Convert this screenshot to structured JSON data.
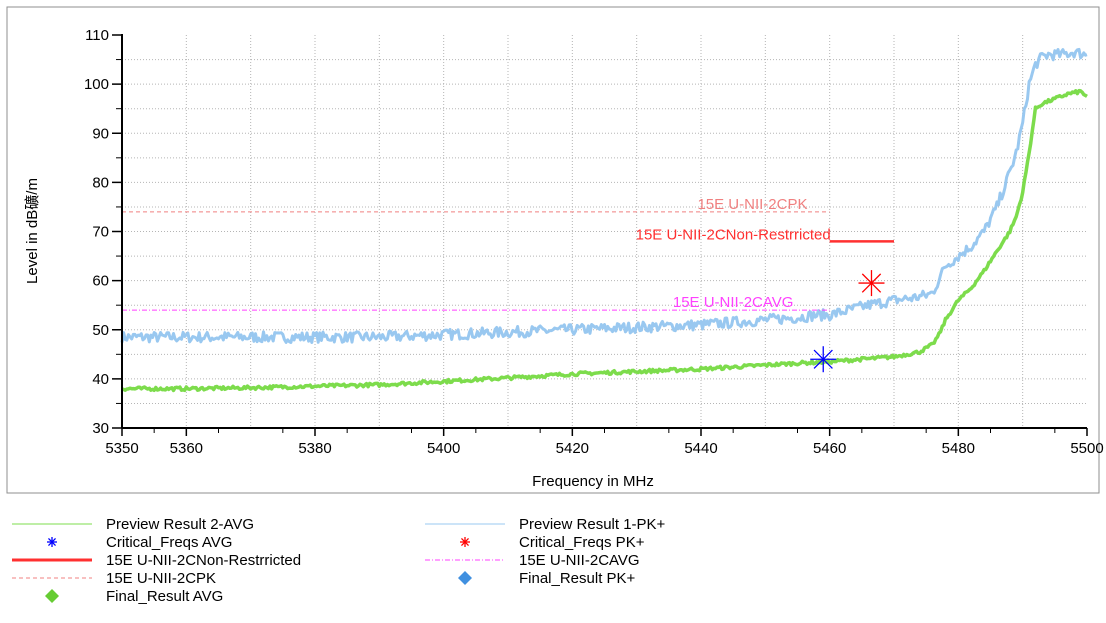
{
  "chart_data": {
    "type": "line",
    "title": "",
    "xlabel": "Frequency in MHz",
    "ylabel": "Level in dB礦/m",
    "xlim": [
      5350,
      5500
    ],
    "ylim": [
      30,
      110
    ],
    "x_ticks": [
      "5350",
      "5360",
      "5380",
      "5400",
      "5420",
      "5440",
      "5460",
      "5480",
      "5500"
    ],
    "x_tick_values": [
      5350,
      5360,
      5380,
      5400,
      5420,
      5440,
      5460,
      5480,
      5500
    ],
    "y_ticks": [
      "30",
      "40",
      "50",
      "60",
      "70",
      "80",
      "90",
      "100",
      "110"
    ],
    "y_tick_values": [
      30,
      40,
      50,
      60,
      70,
      80,
      90,
      100,
      110
    ],
    "grid": true,
    "series": [
      {
        "name": "Preview Result 1-PK+",
        "color": "#99c8f0",
        "x": [
          5350,
          5360,
          5370,
          5380,
          5390,
          5400,
          5410,
          5420,
          5430,
          5440,
          5445,
          5450,
          5455,
          5458,
          5460,
          5463,
          5466,
          5470,
          5473,
          5475,
          5476,
          5478,
          5480,
          5482,
          5484,
          5486,
          5488,
          5489,
          5490,
          5491,
          5492,
          5493,
          5494,
          5496,
          5498,
          5500
        ],
        "y": [
          48.5,
          48.5,
          48.5,
          48.5,
          48.5,
          49,
          49.5,
          50,
          50.5,
          51,
          51.5,
          52,
          52.5,
          53,
          53,
          54,
          55,
          56,
          56.5,
          57,
          57.5,
          63,
          65,
          67,
          70,
          75,
          82,
          86,
          92,
          100,
          104,
          105.5,
          106,
          106,
          106.5,
          106
        ]
      },
      {
        "name": "Preview Result 2-AVG",
        "color": "#7ddc4c",
        "x": [
          5350,
          5360,
          5370,
          5380,
          5390,
          5400,
          5410,
          5420,
          5430,
          5440,
          5450,
          5455,
          5460,
          5465,
          5470,
          5472,
          5474,
          5476,
          5477,
          5478,
          5480,
          5482,
          5484,
          5486,
          5488,
          5489,
          5490,
          5491,
          5492,
          5493,
          5495,
          5497,
          5499,
          5500
        ],
        "y": [
          38,
          38,
          38.2,
          38.5,
          38.8,
          39.5,
          40.2,
          41,
          41.5,
          42,
          42.8,
          43.2,
          43.5,
          44,
          44.5,
          45,
          45.5,
          47,
          49,
          52,
          56,
          58.5,
          62,
          66,
          70,
          73,
          78,
          86,
          95,
          96,
          97,
          98,
          98.5,
          97.5
        ]
      }
    ],
    "limit_lines": [
      {
        "name": "15E U-NII-2CPK",
        "label": "15E U-NII-2CPK",
        "y": 74,
        "x": [
          5350,
          5460
        ],
        "color": "#f08080",
        "dash": "4,3",
        "label_x": 5448
      },
      {
        "name": "15E U-NII-2CNon-Restrricted",
        "label": "15E U-NII-2CNon-Restrricted",
        "y": 68,
        "x": [
          5460,
          5470
        ],
        "color": "#ff3030",
        "dash": "",
        "label_x": 5445
      },
      {
        "name": "15E U-NII-2CAVG",
        "label": "15E U-NII-2CAVG",
        "y": 54,
        "x": [
          5350,
          5460
        ],
        "color": "#ff40ff",
        "dash": "5,2,1,2",
        "label_x": 5445
      }
    ],
    "markers": [
      {
        "name": "Critical_Freqs AVG",
        "x": 5459,
        "y": 44,
        "color": "#0000ff",
        "symbol": "asterisk"
      },
      {
        "name": "Critical_Freqs PK+",
        "x": 5466.5,
        "y": 59.5,
        "color": "#ff0000",
        "symbol": "asterisk"
      }
    ],
    "legend": {
      "placement": "bottom",
      "items": [
        {
          "label": "Preview Result 2-AVG",
          "symbol": "line",
          "color": "#7ddc4c",
          "dash": ""
        },
        {
          "label": "Preview Result 1-PK+",
          "symbol": "line",
          "color": "#99c8f0",
          "dash": ""
        },
        {
          "label": "Critical_Freqs AVG",
          "symbol": "asterisk",
          "color": "#0000ff",
          "dash": ""
        },
        {
          "label": "Critical_Freqs PK+",
          "symbol": "asterisk",
          "color": "#ff0000",
          "dash": ""
        },
        {
          "label": "15E U-NII-2CNon-Restrricted",
          "symbol": "thick-line",
          "color": "#ff3030",
          "dash": ""
        },
        {
          "label": "15E U-NII-2CAVG",
          "symbol": "line",
          "color": "#ff40ff",
          "dash": "5,2,1,2"
        },
        {
          "label": "15E U-NII-2CPK",
          "symbol": "line",
          "color": "#f08080",
          "dash": "4,3"
        },
        {
          "label": "Final_Result PK+",
          "symbol": "diamond",
          "color": "#4090e0",
          "dash": ""
        },
        {
          "label": "Final_Result AVG",
          "symbol": "diamond",
          "color": "#66cc33",
          "dash": ""
        }
      ]
    }
  }
}
